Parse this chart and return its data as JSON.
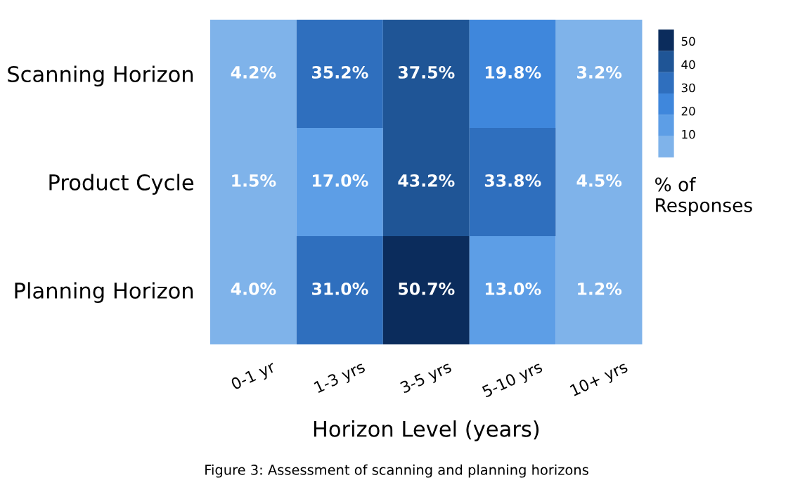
{
  "chart_data": {
    "type": "heatmap",
    "categories": [
      "0-1 yr",
      "1-3 yrs",
      "3-5 yrs",
      "5-10 yrs",
      "10+ yrs"
    ],
    "y_categories": [
      "Scanning Horizon",
      "Product Cycle",
      "Planning Horizon"
    ],
    "cells": [
      [
        4.2,
        35.2,
        37.5,
        19.8,
        3.2
      ],
      [
        1.5,
        17.0,
        43.2,
        33.8,
        4.5
      ],
      [
        4.0,
        31.0,
        50.7,
        13.0,
        1.2
      ]
    ],
    "cell_labels": [
      [
        "4.2%",
        "35.2%",
        "37.5%",
        "19.8%",
        "3.2%"
      ],
      [
        "1.5%",
        "17.0%",
        "43.2%",
        "33.8%",
        "4.5%"
      ],
      [
        "4.0%",
        "31.0%",
        "50.7%",
        "13.0%",
        "1.2%"
      ]
    ],
    "colors": [
      "#7fb3ea",
      "#5d9ee6",
      "#3f87dc",
      "#2f6fbe",
      "#1f5596",
      "#0b2c5c"
    ],
    "clim": [
      0,
      55
    ],
    "cticks": [
      10,
      20,
      30,
      40,
      50
    ],
    "clabel": "% of\nResponses",
    "xlabel": "Horizon Level (years)",
    "annotations": [
      "Figure 3: Assessment of scanning and planning horizons"
    ]
  }
}
